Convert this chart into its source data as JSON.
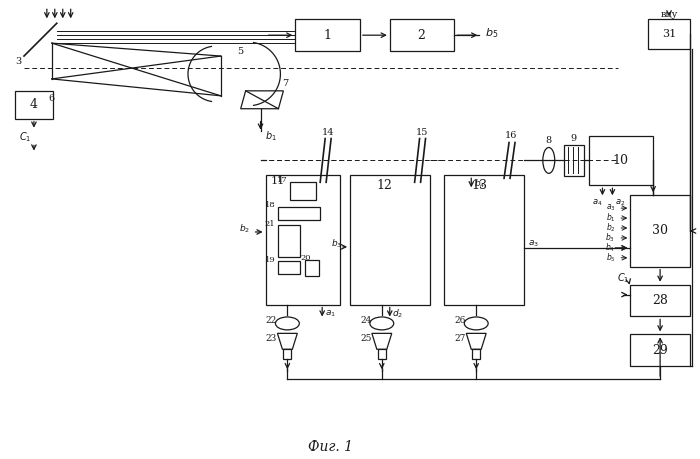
{
  "bg_color": "#ffffff",
  "line_color": "#1a1a1a",
  "fig_label": "Фиг. 1"
}
